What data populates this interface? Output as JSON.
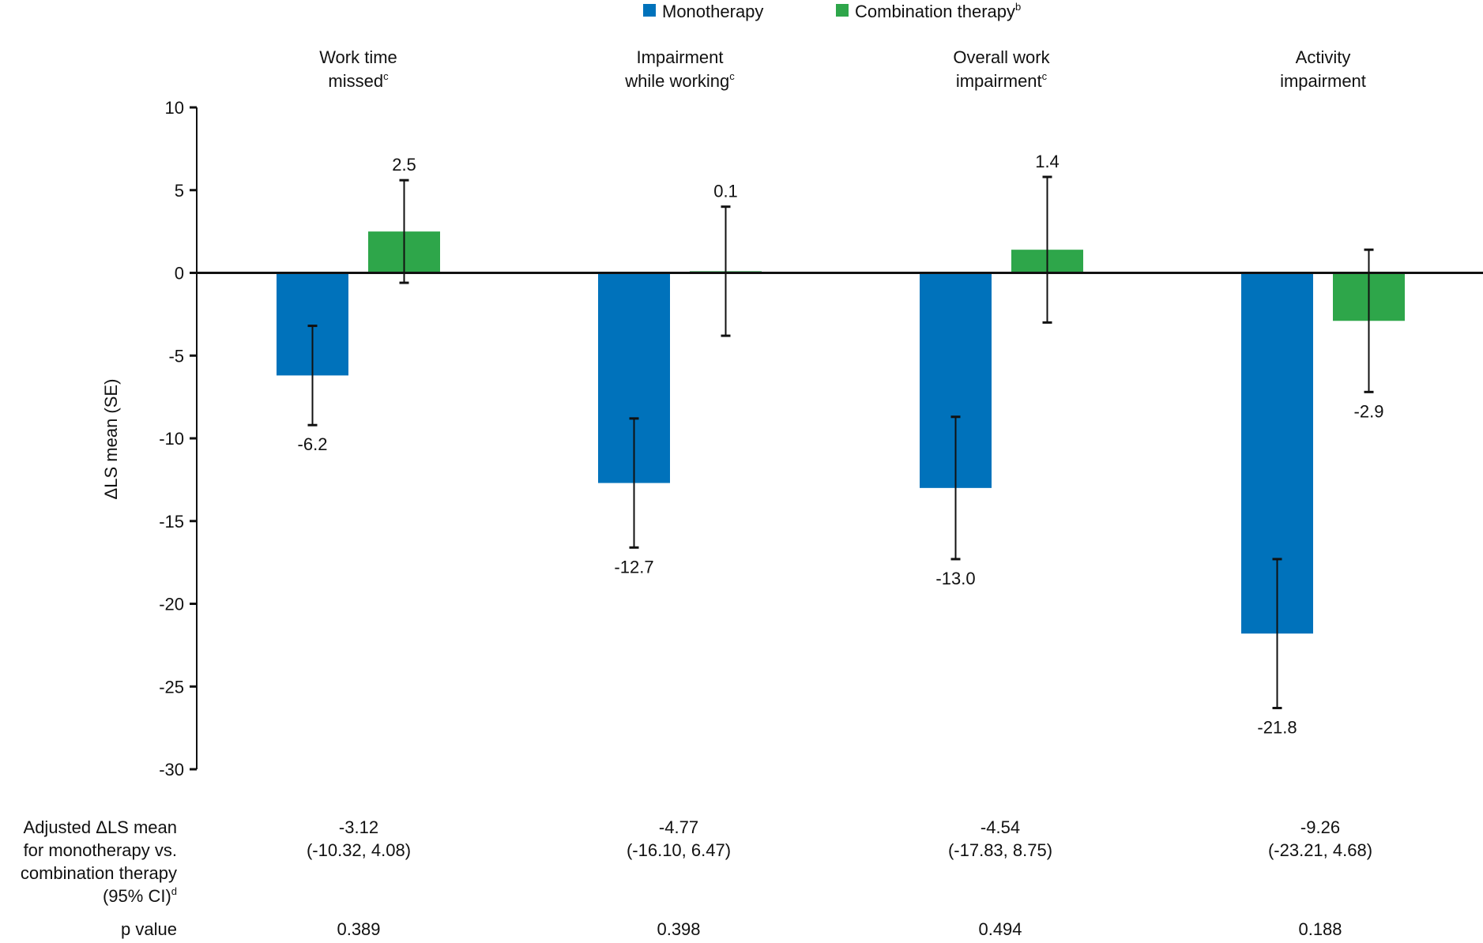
{
  "chart_data": {
    "type": "bar",
    "ylabel": "ΔLS mean (SE)",
    "ylim": [
      -30,
      10
    ],
    "yticks": [
      10,
      5,
      0,
      -5,
      -10,
      -15,
      -20,
      -25,
      -30
    ],
    "grid": false,
    "legend_placement": "top-center",
    "legend": [
      {
        "label": "Monotherapy",
        "sup": "",
        "color": "#0072BB"
      },
      {
        "label": "Combination therapy",
        "sup": "b",
        "color": "#2EA64A"
      }
    ],
    "categories": [
      {
        "lines": [
          "Work time",
          "missed"
        ],
        "sup": "c"
      },
      {
        "lines": [
          "Impairment",
          "while working"
        ],
        "sup": "c"
      },
      {
        "lines": [
          "Overall work",
          "impairment"
        ],
        "sup": "c"
      },
      {
        "lines": [
          "Activity",
          "impairment"
        ],
        "sup": ""
      }
    ],
    "series": [
      {
        "name": "Monotherapy",
        "color": "#0072BB",
        "values": [
          -6.2,
          -12.7,
          -13.0,
          -21.8
        ],
        "labels": [
          "-6.2",
          "-12.7",
          "-13.0",
          "-21.8"
        ],
        "se": [
          3.0,
          3.9,
          4.3,
          4.5
        ]
      },
      {
        "name": "Combination therapy",
        "color": "#2EA64A",
        "values": [
          2.5,
          0.1,
          1.4,
          -2.9
        ],
        "labels": [
          "2.5",
          "0.1",
          "1.4",
          "-2.9"
        ],
        "se": [
          3.1,
          3.9,
          4.4,
          4.3
        ]
      }
    ],
    "table": {
      "row1_label": [
        "Adjusted ΔLS mean",
        "for monotherapy vs.",
        "combination therapy",
        "(95% CI)"
      ],
      "row1_label_sup": "d",
      "row1_values": [
        [
          "-3.12",
          "(-10.32, 4.08)"
        ],
        [
          "-4.77",
          "(-16.10, 6.47)"
        ],
        [
          "-4.54",
          "(-17.83, 8.75)"
        ],
        [
          "-9.26",
          "(-23.21, 4.68)"
        ]
      ],
      "row2_label": "p value",
      "row2_values": [
        "0.389",
        "0.398",
        "0.494",
        "0.188"
      ]
    }
  }
}
